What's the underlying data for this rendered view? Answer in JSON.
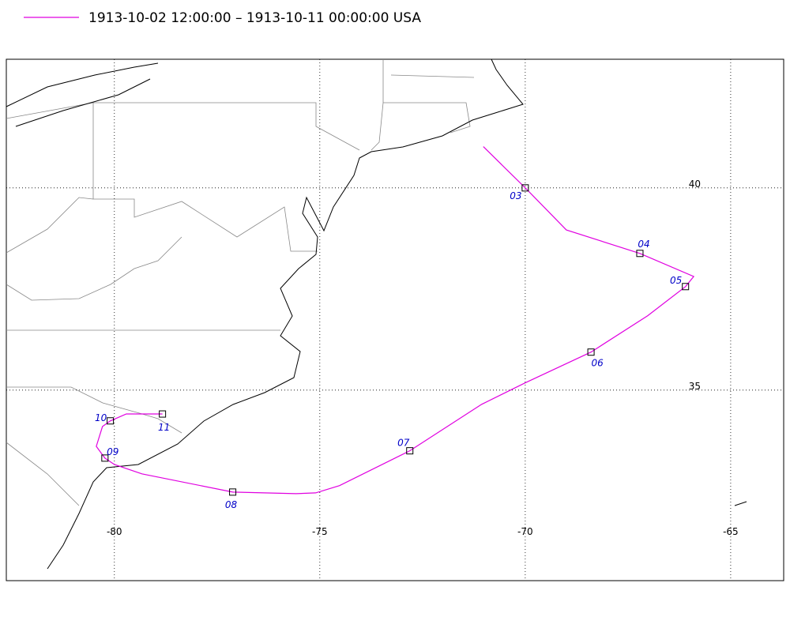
{
  "map": {
    "legend": {
      "text": "1913-10-02 12:00:00 – 1913-10-11 00:00:00  USA",
      "color": "#e000e0"
    },
    "xlim": [
      -82.63,
      -63.71
    ],
    "ylim": [
      30.29,
      43.18
    ],
    "xticks": [
      -80,
      -75,
      -70,
      -65
    ],
    "yticks": [
      35,
      40
    ],
    "grid": true,
    "track": {
      "color": "#e000e0",
      "lon": [
        -71.02,
        -70.0,
        -69.0,
        -67.21,
        -65.9,
        -66.1,
        -67.02,
        -68.4,
        -70.0,
        -71.06,
        -72.81,
        -74.52,
        -75.1,
        -75.58,
        -77.12,
        -79.33,
        -80.0,
        -80.23,
        -80.44,
        -80.29,
        -80.1,
        -79.71,
        -78.83
      ],
      "lat": [
        41.02,
        40.0,
        38.96,
        38.38,
        37.81,
        37.56,
        36.84,
        35.94,
        35.18,
        34.65,
        33.5,
        32.64,
        32.46,
        32.44,
        32.48,
        32.93,
        33.16,
        33.32,
        33.61,
        34.1,
        34.24,
        34.41,
        34.41
      ]
    },
    "markers": [
      {
        "label": "03",
        "lon": -70.0,
        "lat": 40.0
      },
      {
        "label": "04",
        "lon": -67.21,
        "lat": 38.38
      },
      {
        "label": "05",
        "lon": -66.1,
        "lat": 37.56
      },
      {
        "label": "06",
        "lon": -68.4,
        "lat": 35.94
      },
      {
        "label": "07",
        "lon": -72.81,
        "lat": 33.5
      },
      {
        "label": "08",
        "lon": -77.12,
        "lat": 32.48
      },
      {
        "label": "09",
        "lon": -80.23,
        "lat": 33.32
      },
      {
        "label": "10",
        "lon": -80.1,
        "lat": 34.24
      },
      {
        "label": "11",
        "lon": -78.83,
        "lat": 34.41
      }
    ]
  }
}
